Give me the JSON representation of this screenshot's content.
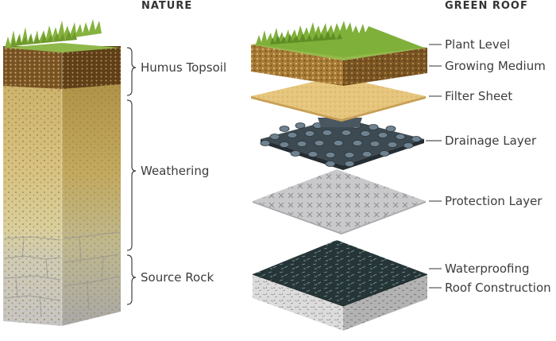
{
  "nature": {
    "title": "NATURE",
    "labels": [
      "Humus Topsoil",
      "Weathering",
      "Source Rock"
    ]
  },
  "green_roof": {
    "title": "GREEN ROOF",
    "labels": [
      "Plant Level",
      "Growing Medium",
      "Filter Sheet",
      "Drainage Layer",
      "Protection Layer",
      "Waterproofing",
      "Roof Construction"
    ]
  }
}
